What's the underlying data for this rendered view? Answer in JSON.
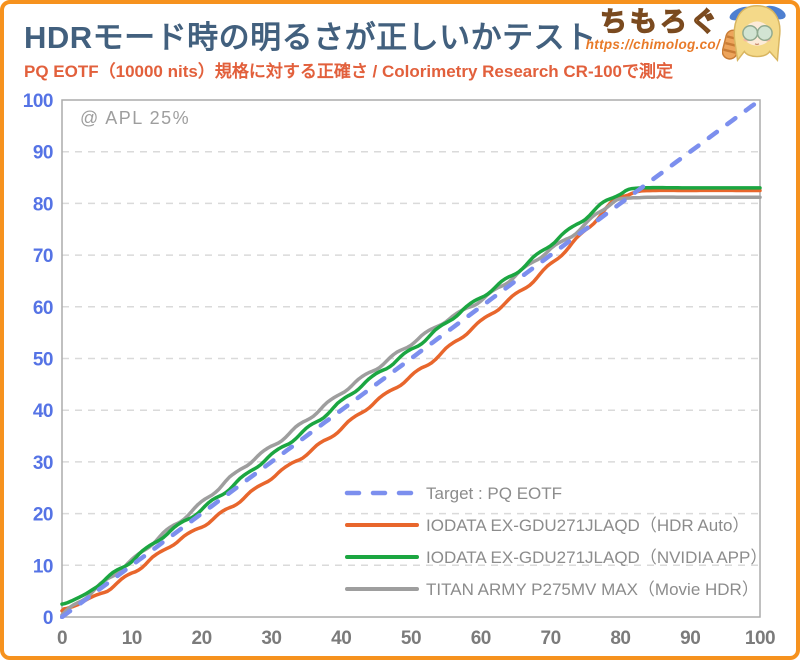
{
  "header": {
    "title": "HDRモード時の明るさが正しいかテスト",
    "subtitle": "PQ EOTF（10000 nits）規格に対する正確さ / Colorimetry Research CR-100で測定",
    "logo": {
      "name": "ちもろぐ",
      "url": "https://chimolog.co/"
    }
  },
  "chart": {
    "annotation": "@ APL 25%"
  },
  "colors": {
    "frame": "#F6921E",
    "title": "#42607E",
    "subtitle": "#E2603C",
    "plot_border": "#ACACAC",
    "gridline": "#DADADA",
    "y_tick": "#5573E5",
    "x_tick": "#7B7B7B",
    "legend_text": "#8C8C8C",
    "target_blue": "#7C8FEE",
    "hdr_auto_orange": "#E8662C",
    "nvidia_green": "#1BA641",
    "titan_gray": "#9E9E9E"
  },
  "chart_data": {
    "type": "line",
    "title": "HDR EOTF tracking accuracy",
    "xlabel": "",
    "ylabel": "",
    "xlim": [
      0,
      100
    ],
    "ylim": [
      0,
      100
    ],
    "x_ticks": [
      0,
      10,
      20,
      30,
      40,
      50,
      60,
      70,
      80,
      90,
      100
    ],
    "y_ticks": [
      0,
      10,
      20,
      30,
      40,
      50,
      60,
      70,
      80,
      90,
      100
    ],
    "grid": "horizontal-dashed",
    "legend_position": "inside-bottom-right",
    "annotation": "@ APL 25%",
    "series": [
      {
        "name": "Target : PQ EOTF",
        "color": "#7C8FEE",
        "style": "dashed",
        "noise": false,
        "points": [
          [
            0,
            0
          ],
          [
            100,
            100
          ]
        ]
      },
      {
        "name": "IODATA EX-GDU271JLAQD（HDR Auto）",
        "color": "#E8662C",
        "style": "solid",
        "noise": true,
        "points": [
          [
            0,
            1.2
          ],
          [
            5,
            4.2
          ],
          [
            10,
            8.6
          ],
          [
            15,
            13.2
          ],
          [
            20,
            17.6
          ],
          [
            25,
            22.2
          ],
          [
            30,
            26.8
          ],
          [
            35,
            31.6
          ],
          [
            40,
            36.6
          ],
          [
            45,
            41.6
          ],
          [
            50,
            46.6
          ],
          [
            55,
            51.8
          ],
          [
            60,
            57.0
          ],
          [
            65,
            62.4
          ],
          [
            70,
            68.2
          ],
          [
            75,
            74.6
          ],
          [
            78,
            79.0
          ],
          [
            80,
            81.4
          ],
          [
            83,
            82.4
          ],
          [
            90,
            82.5
          ],
          [
            100,
            82.5
          ]
        ]
      },
      {
        "name": "IODATA EX-GDU271JLAQD（NVIDIA APP）",
        "color": "#1BA641",
        "style": "solid",
        "noise": true,
        "points": [
          [
            0,
            2.5
          ],
          [
            3,
            4.0
          ],
          [
            5,
            6.3
          ],
          [
            10,
            11.0
          ],
          [
            15,
            16.0
          ],
          [
            20,
            21.0
          ],
          [
            25,
            26.0
          ],
          [
            30,
            31.2
          ],
          [
            35,
            36.4
          ],
          [
            40,
            41.6
          ],
          [
            45,
            46.8
          ],
          [
            50,
            51.8
          ],
          [
            55,
            56.8
          ],
          [
            60,
            61.8
          ],
          [
            65,
            66.8
          ],
          [
            70,
            72.0
          ],
          [
            75,
            77.2
          ],
          [
            78,
            80.6
          ],
          [
            80,
            82.2
          ],
          [
            83,
            83.0
          ],
          [
            90,
            83.0
          ],
          [
            100,
            83.0
          ]
        ]
      },
      {
        "name": "TITAN ARMY P275MV MAX（Movie HDR）",
        "color": "#9E9E9E",
        "style": "solid",
        "noise": true,
        "points": [
          [
            0,
            0.4
          ],
          [
            5,
            5.8
          ],
          [
            10,
            10.8
          ],
          [
            15,
            16.6
          ],
          [
            20,
            22.2
          ],
          [
            25,
            27.8
          ],
          [
            30,
            33.0
          ],
          [
            35,
            38.2
          ],
          [
            40,
            43.2
          ],
          [
            45,
            48.2
          ],
          [
            50,
            53.0
          ],
          [
            55,
            57.2
          ],
          [
            60,
            61.4
          ],
          [
            65,
            66.2
          ],
          [
            70,
            71.0
          ],
          [
            73,
            73.8
          ],
          [
            75,
            76.0
          ],
          [
            77,
            78.6
          ],
          [
            79,
            80.4
          ],
          [
            81,
            81.0
          ],
          [
            85,
            81.2
          ],
          [
            90,
            81.2
          ],
          [
            100,
            81.2
          ]
        ]
      }
    ]
  }
}
